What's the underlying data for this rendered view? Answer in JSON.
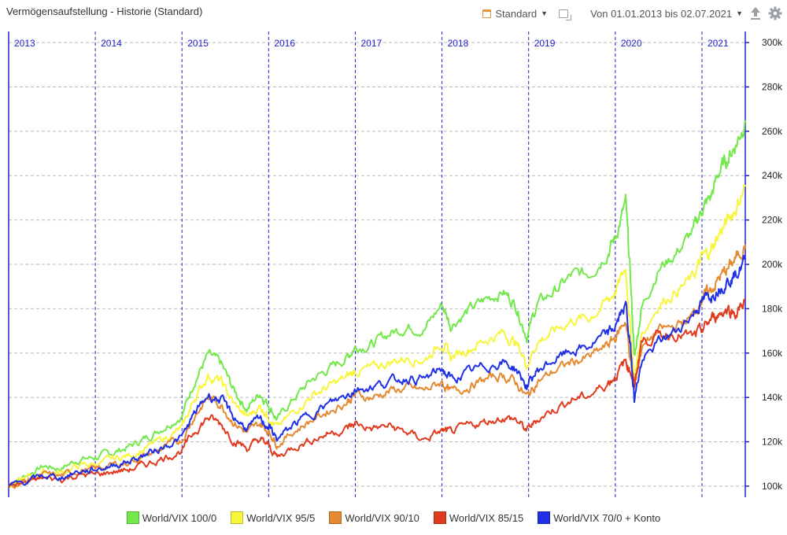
{
  "header": {
    "title": "Vermögensaufstellung - Historie (Standard)",
    "view_label": "Standard",
    "date_range": "Von 01.01.2013 bis 02.07.2021"
  },
  "icons": [
    "calendar-icon",
    "chevron-down-icon",
    "export-icon",
    "upload-icon",
    "gear-icon"
  ],
  "colors": {
    "green": "#72e84a",
    "yellow": "#f7f53c",
    "orange": "#e48a32",
    "red": "#e03b1f",
    "blue": "#1f30e6",
    "axis": "#2222cc",
    "grid": "#bbbbbb"
  },
  "chart_data": {
    "type": "line",
    "title": "Vermögensaufstellung - Historie (Standard)",
    "x_range": [
      2013.0,
      2021.5
    ],
    "ylim": [
      95000,
      305000
    ],
    "y_ticks": [
      100000,
      120000,
      140000,
      160000,
      180000,
      200000,
      220000,
      240000,
      260000,
      280000,
      300000
    ],
    "y_tick_labels": [
      "100k",
      "120k",
      "140k",
      "160k",
      "180k",
      "200k",
      "220k",
      "240k",
      "260k",
      "280k",
      "300k"
    ],
    "x_tick_labels": [
      "2013",
      "2014",
      "2015",
      "2016",
      "2017",
      "2018",
      "2019",
      "2020",
      "2021"
    ],
    "x_ticks": [
      2013,
      2014,
      2015,
      2016,
      2017,
      2018,
      2019,
      2020,
      2021
    ],
    "grid": true,
    "legend_position": "bottom",
    "series": [
      {
        "name": "World/VIX 100/0",
        "color": "#72e84a",
        "points": [
          [
            2013.0,
            100000
          ],
          [
            2013.2,
            105000
          ],
          [
            2013.4,
            109000
          ],
          [
            2013.6,
            108000
          ],
          [
            2013.8,
            112000
          ],
          [
            2014.0,
            113000
          ],
          [
            2014.2,
            115000
          ],
          [
            2014.4,
            118000
          ],
          [
            2014.6,
            122000
          ],
          [
            2014.8,
            127000
          ],
          [
            2015.0,
            132000
          ],
          [
            2015.15,
            148000
          ],
          [
            2015.3,
            159000
          ],
          [
            2015.45,
            155000
          ],
          [
            2015.6,
            143000
          ],
          [
            2015.75,
            135000
          ],
          [
            2015.9,
            142000
          ],
          [
            2016.0,
            137000
          ],
          [
            2016.1,
            130000
          ],
          [
            2016.3,
            140000
          ],
          [
            2016.5,
            148000
          ],
          [
            2016.7,
            153000
          ],
          [
            2016.9,
            158000
          ],
          [
            2017.0,
            163000
          ],
          [
            2017.2,
            164000
          ],
          [
            2017.4,
            169000
          ],
          [
            2017.6,
            172000
          ],
          [
            2017.8,
            171000
          ],
          [
            2018.0,
            182000
          ],
          [
            2018.1,
            173000
          ],
          [
            2018.3,
            179000
          ],
          [
            2018.5,
            184000
          ],
          [
            2018.7,
            188000
          ],
          [
            2018.85,
            182000
          ],
          [
            2018.98,
            168000
          ],
          [
            2019.1,
            182000
          ],
          [
            2019.3,
            188000
          ],
          [
            2019.5,
            195000
          ],
          [
            2019.7,
            196000
          ],
          [
            2019.9,
            205000
          ],
          [
            2020.0,
            212000
          ],
          [
            2020.12,
            228000
          ],
          [
            2020.18,
            190000
          ],
          [
            2020.22,
            158000
          ],
          [
            2020.3,
            180000
          ],
          [
            2020.5,
            198000
          ],
          [
            2020.7,
            205000
          ],
          [
            2020.9,
            215000
          ],
          [
            2021.0,
            225000
          ],
          [
            2021.1,
            230000
          ],
          [
            2021.2,
            242000
          ],
          [
            2021.3,
            248000
          ],
          [
            2021.4,
            255000
          ],
          [
            2021.5,
            265000
          ]
        ]
      },
      {
        "name": "World/VIX 95/5",
        "color": "#f7f53c",
        "points": [
          [
            2013.0,
            100000
          ],
          [
            2013.2,
            103500
          ],
          [
            2013.4,
            106500
          ],
          [
            2013.6,
            106000
          ],
          [
            2013.8,
            109000
          ],
          [
            2014.0,
            110000
          ],
          [
            2014.2,
            112000
          ],
          [
            2014.4,
            114000
          ],
          [
            2014.6,
            117500
          ],
          [
            2014.8,
            121500
          ],
          [
            2015.0,
            126000
          ],
          [
            2015.15,
            140000
          ],
          [
            2015.3,
            150000
          ],
          [
            2015.45,
            147000
          ],
          [
            2015.6,
            137000
          ],
          [
            2015.75,
            131000
          ],
          [
            2015.9,
            136000
          ],
          [
            2016.0,
            132000
          ],
          [
            2016.1,
            126000
          ],
          [
            2016.3,
            134000
          ],
          [
            2016.5,
            141000
          ],
          [
            2016.7,
            145000
          ],
          [
            2016.9,
            149000
          ],
          [
            2017.0,
            152000
          ],
          [
            2017.2,
            153000
          ],
          [
            2017.4,
            156000
          ],
          [
            2017.6,
            158000
          ],
          [
            2017.8,
            157000
          ],
          [
            2018.0,
            165000
          ],
          [
            2018.1,
            158000
          ],
          [
            2018.3,
            162000
          ],
          [
            2018.5,
            166000
          ],
          [
            2018.7,
            169000
          ],
          [
            2018.85,
            165000
          ],
          [
            2018.98,
            155000
          ],
          [
            2019.1,
            165000
          ],
          [
            2019.3,
            170000
          ],
          [
            2019.5,
            175000
          ],
          [
            2019.7,
            176000
          ],
          [
            2019.9,
            183000
          ],
          [
            2020.0,
            188000
          ],
          [
            2020.12,
            198000
          ],
          [
            2020.18,
            168000
          ],
          [
            2020.22,
            148000
          ],
          [
            2020.3,
            168000
          ],
          [
            2020.5,
            182000
          ],
          [
            2020.7,
            188000
          ],
          [
            2020.9,
            194000
          ],
          [
            2021.0,
            203000
          ],
          [
            2021.1,
            206000
          ],
          [
            2021.2,
            214000
          ],
          [
            2021.3,
            220000
          ],
          [
            2021.4,
            226000
          ],
          [
            2021.5,
            235000
          ]
        ]
      },
      {
        "name": "World/VIX 90/10",
        "color": "#e48a32",
        "points": [
          [
            2013.0,
            100000
          ],
          [
            2013.2,
            102500
          ],
          [
            2013.4,
            105000
          ],
          [
            2013.6,
            104500
          ],
          [
            2013.8,
            107000
          ],
          [
            2014.0,
            107500
          ],
          [
            2014.2,
            109500
          ],
          [
            2014.4,
            111000
          ],
          [
            2014.6,
            114000
          ],
          [
            2014.8,
            117500
          ],
          [
            2015.0,
            121000
          ],
          [
            2015.15,
            132000
          ],
          [
            2015.3,
            140000
          ],
          [
            2015.45,
            137000
          ],
          [
            2015.6,
            129000
          ],
          [
            2015.75,
            124000
          ],
          [
            2015.9,
            128000
          ],
          [
            2016.0,
            125000
          ],
          [
            2016.1,
            119000
          ],
          [
            2016.3,
            125000
          ],
          [
            2016.5,
            130000
          ],
          [
            2016.7,
            134000
          ],
          [
            2016.9,
            138000
          ],
          [
            2017.0,
            141000
          ],
          [
            2017.2,
            140000
          ],
          [
            2017.4,
            143000
          ],
          [
            2017.6,
            144000
          ],
          [
            2017.8,
            143000
          ],
          [
            2018.0,
            147000
          ],
          [
            2018.1,
            142000
          ],
          [
            2018.3,
            145000
          ],
          [
            2018.5,
            148000
          ],
          [
            2018.7,
            150000
          ],
          [
            2018.85,
            147000
          ],
          [
            2018.98,
            140000
          ],
          [
            2019.1,
            147000
          ],
          [
            2019.3,
            152000
          ],
          [
            2019.5,
            156000
          ],
          [
            2019.7,
            158000
          ],
          [
            2019.9,
            163000
          ],
          [
            2020.0,
            167000
          ],
          [
            2020.12,
            175000
          ],
          [
            2020.18,
            155000
          ],
          [
            2020.22,
            145000
          ],
          [
            2020.3,
            162000
          ],
          [
            2020.5,
            170000
          ],
          [
            2020.7,
            172000
          ],
          [
            2020.9,
            177000
          ],
          [
            2021.0,
            185000
          ],
          [
            2021.1,
            188000
          ],
          [
            2021.2,
            194000
          ],
          [
            2021.3,
            198000
          ],
          [
            2021.4,
            203000
          ],
          [
            2021.5,
            209000
          ]
        ]
      },
      {
        "name": "World/VIX 85/15",
        "color": "#e03b1f",
        "points": [
          [
            2013.0,
            100000
          ],
          [
            2013.2,
            101500
          ],
          [
            2013.4,
            103500
          ],
          [
            2013.6,
            103000
          ],
          [
            2013.8,
            105000
          ],
          [
            2014.0,
            105000
          ],
          [
            2014.2,
            106500
          ],
          [
            2014.4,
            107500
          ],
          [
            2014.6,
            110000
          ],
          [
            2014.8,
            113000
          ],
          [
            2015.0,
            116000
          ],
          [
            2015.15,
            125000
          ],
          [
            2015.3,
            131000
          ],
          [
            2015.45,
            128000
          ],
          [
            2015.6,
            121000
          ],
          [
            2015.75,
            117000
          ],
          [
            2015.9,
            121000
          ],
          [
            2016.0,
            118000
          ],
          [
            2016.1,
            113000
          ],
          [
            2016.3,
            118000
          ],
          [
            2016.5,
            121000
          ],
          [
            2016.7,
            124000
          ],
          [
            2016.9,
            126000
          ],
          [
            2017.0,
            128000
          ],
          [
            2017.2,
            126000
          ],
          [
            2017.4,
            127000
          ],
          [
            2017.6,
            124000
          ],
          [
            2017.8,
            121000
          ],
          [
            2018.0,
            125000
          ],
          [
            2018.1,
            124000
          ],
          [
            2018.3,
            127000
          ],
          [
            2018.5,
            129000
          ],
          [
            2018.7,
            131000
          ],
          [
            2018.85,
            130000
          ],
          [
            2018.98,
            125000
          ],
          [
            2019.1,
            130000
          ],
          [
            2019.3,
            135000
          ],
          [
            2019.5,
            139000
          ],
          [
            2019.7,
            141000
          ],
          [
            2019.9,
            146000
          ],
          [
            2020.0,
            150000
          ],
          [
            2020.12,
            156000
          ],
          [
            2020.18,
            152000
          ],
          [
            2020.22,
            145000
          ],
          [
            2020.3,
            165000
          ],
          [
            2020.5,
            168000
          ],
          [
            2020.7,
            169000
          ],
          [
            2020.9,
            167000
          ],
          [
            2021.0,
            170000
          ],
          [
            2021.1,
            175000
          ],
          [
            2021.2,
            178000
          ],
          [
            2021.3,
            180000
          ],
          [
            2021.4,
            178000
          ],
          [
            2021.5,
            184000
          ]
        ]
      },
      {
        "name": "World/VIX 70/0 + Konto",
        "color": "#1f30e6",
        "points": [
          [
            2013.0,
            100000
          ],
          [
            2013.2,
            102000
          ],
          [
            2013.4,
            104500
          ],
          [
            2013.6,
            104000
          ],
          [
            2013.8,
            106500
          ],
          [
            2014.0,
            107500
          ],
          [
            2014.2,
            109500
          ],
          [
            2014.4,
            111500
          ],
          [
            2014.6,
            114500
          ],
          [
            2014.8,
            118000
          ],
          [
            2015.0,
            122000
          ],
          [
            2015.15,
            133000
          ],
          [
            2015.3,
            141000
          ],
          [
            2015.45,
            139000
          ],
          [
            2015.6,
            131000
          ],
          [
            2015.75,
            126000
          ],
          [
            2015.9,
            130000
          ],
          [
            2016.0,
            127000
          ],
          [
            2016.1,
            121000
          ],
          [
            2016.3,
            128000
          ],
          [
            2016.5,
            133000
          ],
          [
            2016.7,
            137000
          ],
          [
            2016.9,
            141000
          ],
          [
            2017.0,
            144000
          ],
          [
            2017.2,
            145000
          ],
          [
            2017.4,
            147000
          ],
          [
            2017.6,
            149000
          ],
          [
            2017.8,
            148000
          ],
          [
            2018.0,
            153000
          ],
          [
            2018.1,
            148000
          ],
          [
            2018.3,
            151000
          ],
          [
            2018.5,
            154000
          ],
          [
            2018.7,
            156000
          ],
          [
            2018.85,
            153000
          ],
          [
            2018.98,
            145000
          ],
          [
            2019.1,
            152000
          ],
          [
            2019.3,
            157000
          ],
          [
            2019.5,
            161000
          ],
          [
            2019.7,
            163000
          ],
          [
            2019.9,
            168000
          ],
          [
            2020.0,
            172000
          ],
          [
            2020.12,
            182000
          ],
          [
            2020.18,
            160000
          ],
          [
            2020.22,
            140000
          ],
          [
            2020.3,
            155000
          ],
          [
            2020.5,
            165000
          ],
          [
            2020.7,
            170000
          ],
          [
            2020.9,
            178000
          ],
          [
            2021.0,
            183000
          ],
          [
            2021.1,
            186000
          ],
          [
            2021.2,
            190000
          ],
          [
            2021.3,
            193000
          ],
          [
            2021.4,
            196000
          ],
          [
            2021.5,
            202000
          ]
        ]
      }
    ]
  }
}
